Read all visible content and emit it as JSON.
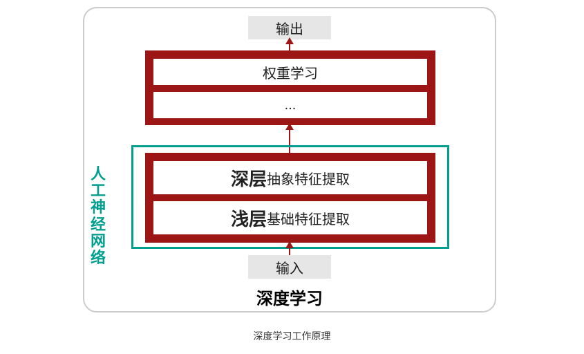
{
  "diagram": {
    "type": "flowchart",
    "io": {
      "output": "输出",
      "input": "输入"
    },
    "upper_block": {
      "rows": [
        "权重学习",
        "..."
      ],
      "bg_color": "#9b1614",
      "row_bg": "#ffffff"
    },
    "lower_block": {
      "rows": [
        {
          "bold": "深层",
          "rest": "抽象特征提取"
        },
        {
          "bold": "浅层",
          "rest": "基础特征提取"
        }
      ],
      "bg_color": "#9b1614",
      "row_bg": "#ffffff"
    },
    "teal_group": {
      "label": "人工神经网络",
      "border_color": "#009e8e"
    },
    "title": "深度学习",
    "arrow_color": "#9b1614",
    "outer_border_color": "#cccccc",
    "io_bg": "#e6e6e6"
  },
  "caption": "深度学习工作原理"
}
